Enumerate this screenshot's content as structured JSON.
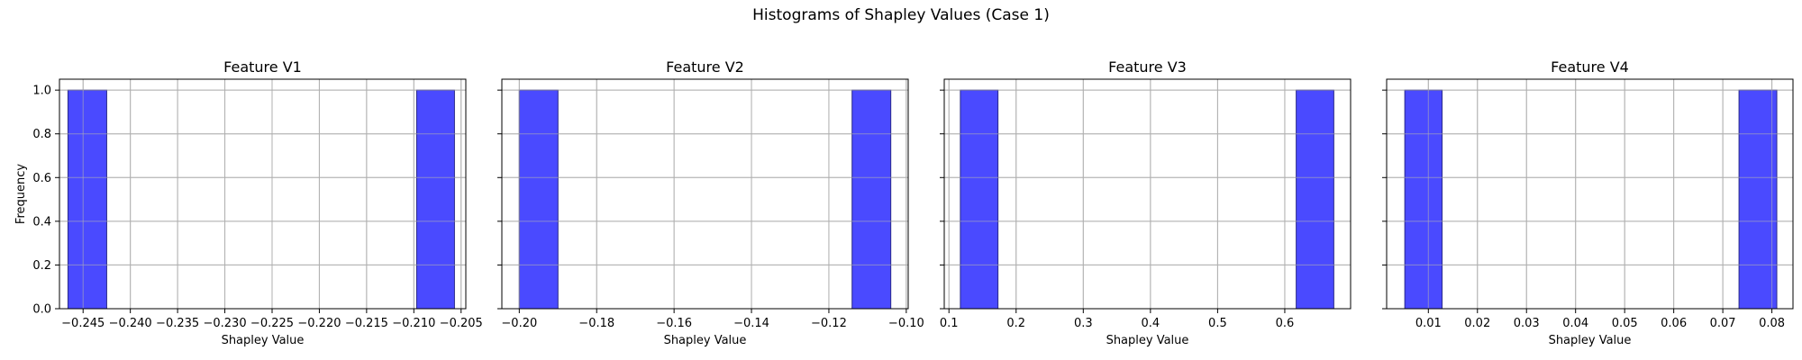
{
  "figure": {
    "title": "Histograms of Shapley Values (Case 1)"
  },
  "chart_data": [
    {
      "type": "bar",
      "title": "Feature V1",
      "xlabel": "Shapley Value",
      "ylabel": "Frequency",
      "xlim": [
        -0.2475,
        -0.2045
      ],
      "ylim": [
        0,
        1.05
      ],
      "xticks": [
        -0.245,
        -0.24,
        -0.235,
        -0.23,
        -0.225,
        -0.22,
        -0.215,
        -0.21,
        -0.205
      ],
      "xtick_labels": [
        "−0.245",
        "−0.240",
        "−0.235",
        "−0.230",
        "−0.225",
        "−0.220",
        "−0.215",
        "−0.210",
        "−0.205"
      ],
      "yticks": [
        0.0,
        0.2,
        0.4,
        0.6,
        0.8,
        1.0
      ],
      "ytick_labels": [
        "0.0",
        "0.2",
        "0.4",
        "0.6",
        "0.8",
        "1.0"
      ],
      "show_ytick_labels": true,
      "bins": [
        {
          "x0": -0.2466,
          "x1": -0.2425,
          "count": 1
        },
        {
          "x0": -0.2097,
          "x1": -0.2057,
          "count": 1
        }
      ],
      "grid": true,
      "bar_color": "#4a4aff",
      "edge_color": "#2a2a8a"
    },
    {
      "type": "bar",
      "title": "Feature V2",
      "xlabel": "Shapley Value",
      "ylabel": "",
      "xlim": [
        -0.2045,
        -0.0995
      ],
      "ylim": [
        0,
        1.05
      ],
      "xticks": [
        -0.2,
        -0.18,
        -0.16,
        -0.14,
        -0.12,
        -0.1
      ],
      "xtick_labels": [
        "−0.20",
        "−0.18",
        "−0.16",
        "−0.14",
        "−0.12",
        "−0.10"
      ],
      "yticks": [
        0.0,
        0.2,
        0.4,
        0.6,
        0.8,
        1.0
      ],
      "ytick_labels": [],
      "show_ytick_labels": false,
      "bins": [
        {
          "x0": -0.2,
          "x1": -0.19,
          "count": 1
        },
        {
          "x0": -0.114,
          "x1": -0.104,
          "count": 1
        }
      ],
      "grid": true,
      "bar_color": "#4a4aff",
      "edge_color": "#2a2a8a"
    },
    {
      "type": "bar",
      "title": "Feature V3",
      "xlabel": "Shapley Value",
      "ylabel": "",
      "xlim": [
        0.093,
        0.698
      ],
      "ylim": [
        0,
        1.05
      ],
      "xticks": [
        0.1,
        0.2,
        0.3,
        0.4,
        0.5,
        0.6
      ],
      "xtick_labels": [
        "0.1",
        "0.2",
        "0.3",
        "0.4",
        "0.5",
        "0.6"
      ],
      "yticks": [
        0.0,
        0.2,
        0.4,
        0.6,
        0.8,
        1.0
      ],
      "ytick_labels": [],
      "show_ytick_labels": false,
      "bins": [
        {
          "x0": 0.117,
          "x1": 0.173,
          "count": 1
        },
        {
          "x0": 0.617,
          "x1": 0.673,
          "count": 1
        }
      ],
      "grid": true,
      "bar_color": "#4a4aff",
      "edge_color": "#2a2a8a"
    },
    {
      "type": "bar",
      "title": "Feature V4",
      "xlabel": "Shapley Value",
      "ylabel": "",
      "xlim": [
        0.0015,
        0.0843
      ],
      "ylim": [
        0,
        1.05
      ],
      "xticks": [
        0.01,
        0.02,
        0.03,
        0.04,
        0.05,
        0.06,
        0.07,
        0.08
      ],
      "xtick_labels": [
        "0.01",
        "0.02",
        "0.03",
        "0.04",
        "0.05",
        "0.06",
        "0.07",
        "0.08"
      ],
      "yticks": [
        0.0,
        0.2,
        0.4,
        0.6,
        0.8,
        1.0
      ],
      "ytick_labels": [],
      "show_ytick_labels": false,
      "bins": [
        {
          "x0": 0.0052,
          "x1": 0.0128,
          "count": 1
        },
        {
          "x0": 0.0733,
          "x1": 0.081,
          "count": 1
        }
      ],
      "grid": true,
      "bar_color": "#4a4aff",
      "edge_color": "#2a2a8a"
    }
  ]
}
